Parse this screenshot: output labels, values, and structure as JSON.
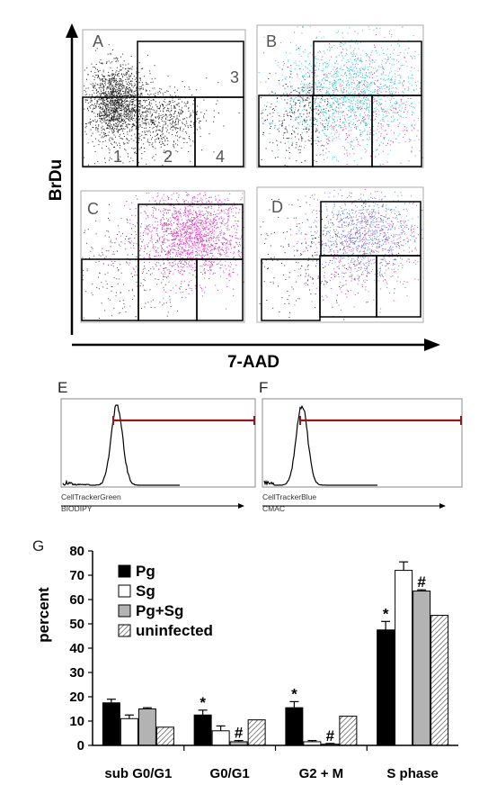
{
  "flow": {
    "y_axis_label": "BrDu",
    "x_axis_label": "7-AAD",
    "panels": [
      {
        "letter": "A",
        "color": "#222222",
        "gate_labels": [
          "1",
          "2",
          "3",
          "4"
        ]
      },
      {
        "letter": "B",
        "color": "#33cccc",
        "gate_labels": []
      },
      {
        "letter": "C",
        "color": "#dd33bb",
        "gate_labels": []
      },
      {
        "letter": "D",
        "color": "#6688dd",
        "gate_labels": []
      }
    ]
  },
  "histograms": [
    {
      "letter": "E",
      "caption_line1": "CellTrackerGreen",
      "caption_line2": "BIODIPY"
    },
    {
      "letter": "F",
      "caption_line1": "CellTrackerBlue",
      "caption_line2": "CMAC"
    }
  ],
  "chart_data": {
    "type": "bar",
    "panel_letter": "G",
    "title": "",
    "xlabel": "",
    "ylabel": "percent",
    "ylim": [
      0,
      80
    ],
    "yticks": [
      0,
      10,
      20,
      30,
      40,
      50,
      60,
      70,
      80
    ],
    "categories": [
      "sub G0/G1",
      "G0/G1",
      "G2 + M",
      "S phase"
    ],
    "series": [
      {
        "name": "Pg",
        "fill": "#000000",
        "pattern": "solid",
        "values": [
          17.5,
          12.5,
          15.5,
          47.5
        ],
        "errors": [
          1.5,
          2.0,
          2.5,
          3.5
        ]
      },
      {
        "name": "Sg",
        "fill": "#ffffff",
        "pattern": "solid",
        "values": [
          11.0,
          6.0,
          1.5,
          72.0
        ],
        "errors": [
          1.5,
          2.0,
          0.5,
          3.5
        ]
      },
      {
        "name": "Pg+Sg",
        "fill": "#b3b3b3",
        "pattern": "solid",
        "values": [
          15.0,
          1.5,
          0.5,
          63.5
        ],
        "errors": [
          0.5,
          0.5,
          0.3,
          0.5
        ]
      },
      {
        "name": "uninfected",
        "fill": "#ffffff",
        "pattern": "hatch",
        "values": [
          7.5,
          10.5,
          12.0,
          53.5
        ],
        "errors": [
          0,
          0,
          0,
          0
        ]
      }
    ],
    "annotations": [
      {
        "text": "*",
        "category": 1,
        "series": 0
      },
      {
        "text": "#",
        "category": 1,
        "series": 2
      },
      {
        "text": "*",
        "category": 2,
        "series": 0
      },
      {
        "text": "#",
        "category": 2,
        "series": 2
      },
      {
        "text": "*",
        "category": 3,
        "series": 0
      },
      {
        "text": "#",
        "category": 3,
        "series": 2
      }
    ],
    "grid": false,
    "legend": "top-left"
  }
}
